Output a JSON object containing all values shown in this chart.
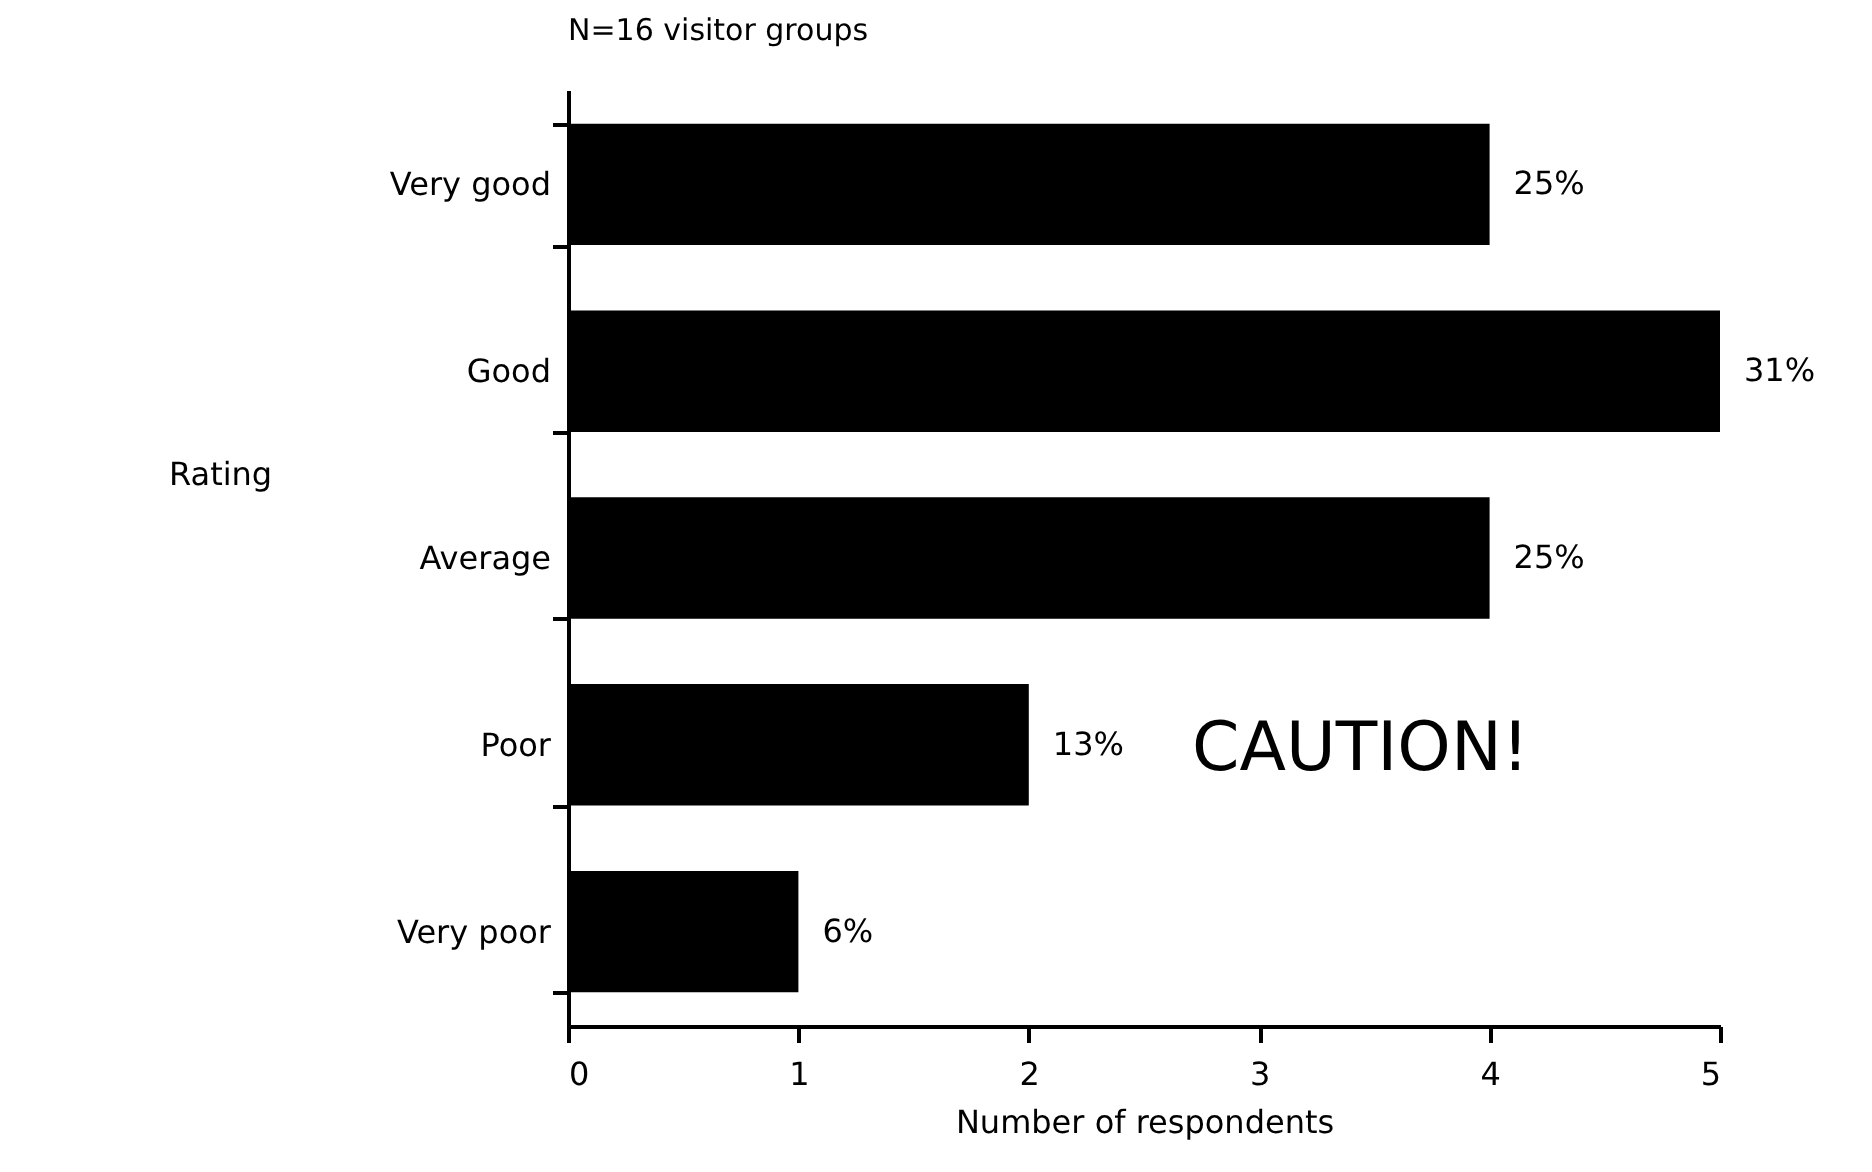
{
  "chart_data": {
    "type": "bar",
    "orientation": "horizontal",
    "title": "N=16 visitor groups",
    "xlabel": "Number of respondents",
    "ylabel": "Rating",
    "categories": [
      "Very good",
      "Good",
      "Average",
      "Poor",
      "Very poor"
    ],
    "values": [
      4,
      5,
      4,
      2,
      1
    ],
    "color": "#000000",
    "xlim": [
      0,
      5
    ],
    "xticks": [
      0,
      1,
      2,
      3,
      4,
      5
    ],
    "grid": false,
    "annotations": [
      {
        "text": "25%",
        "x": 4,
        "y": "Very good"
      },
      {
        "text": "31%",
        "x": 5,
        "y": "Good"
      },
      {
        "text": "25%",
        "x": 4,
        "y": "Average"
      },
      {
        "text": "13%",
        "x": 2,
        "y": "Poor"
      },
      {
        "text": "6%",
        "x": 1,
        "y": "Very poor"
      },
      "CAUTION!"
    ]
  }
}
